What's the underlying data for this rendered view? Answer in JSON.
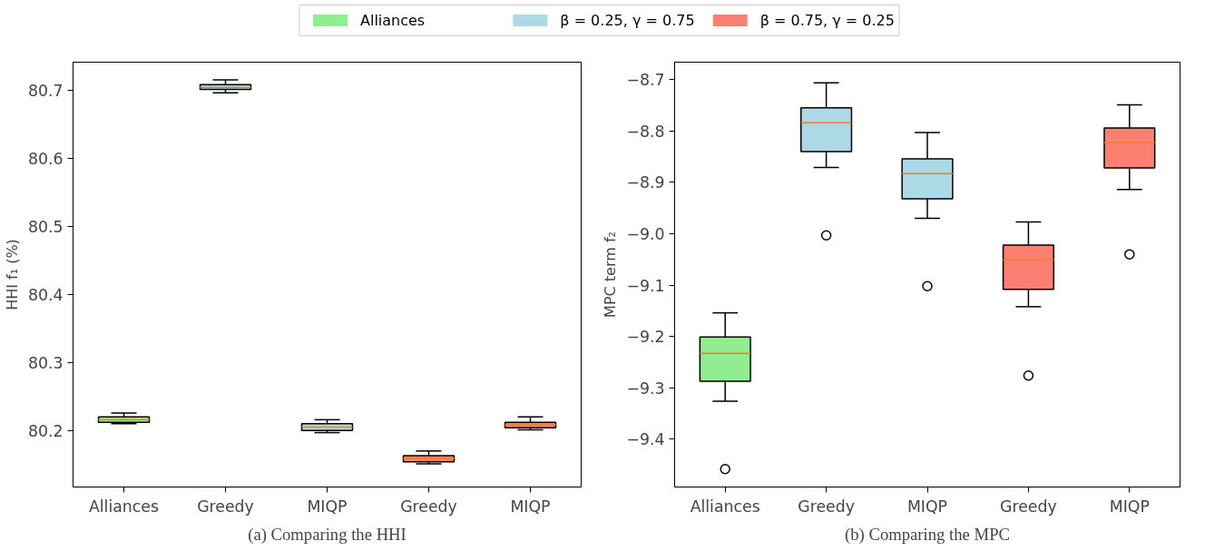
{
  "chart_data": [
    {
      "type": "box",
      "title": "(a) Comparing the HHI",
      "ylabel": "HHI f₁ (%)",
      "categories": [
        "Alliances",
        "Greedy",
        "MIQP",
        "Greedy",
        "MIQP"
      ],
      "ylim": [
        80.117,
        80.742
      ],
      "yticks": [
        80.2,
        80.3,
        80.4,
        80.5,
        80.6,
        80.7
      ],
      "grid": false,
      "legend": "top",
      "series": [
        {
          "name": "Alliances",
          "color": "#90ee90",
          "boxes": [
            {
              "low": 80.21,
              "q1": 80.212,
              "median": 80.216,
              "q3": 80.22,
              "high": 80.226
            },
            null,
            null,
            null,
            null
          ]
        },
        {
          "name": "β = 0.25, γ = 0.75",
          "color": "#add8e6",
          "boxes": [
            null,
            {
              "low": 80.697,
              "q1": 80.702,
              "median": 80.705,
              "q3": 80.709,
              "high": 80.716
            },
            {
              "low": 80.197,
              "q1": 80.2,
              "median": 80.205,
              "q3": 80.21,
              "high": 80.216
            },
            null,
            null
          ]
        },
        {
          "name": "β = 0.75, γ = 0.25",
          "color": "#fa8072",
          "boxes": [
            null,
            null,
            null,
            {
              "low": 80.151,
              "q1": 80.154,
              "median": 80.159,
              "q3": 80.163,
              "high": 80.17
            },
            {
              "low": 80.201,
              "q1": 80.204,
              "median": 80.208,
              "q3": 80.212,
              "high": 80.22
            }
          ]
        }
      ]
    },
    {
      "type": "box",
      "title": "(b) Comparing the MPC",
      "ylabel": "MPC term f₂",
      "categories": [
        "Alliances",
        "Greedy",
        "MIQP",
        "Greedy",
        "MIQP"
      ],
      "ylim": [
        -9.493,
        -8.666
      ],
      "yticks": [
        {
          "value": -9.4,
          "label": "−9.4"
        },
        {
          "value": -9.3,
          "label": "−9.3"
        },
        {
          "value": -9.2,
          "label": "−9.2"
        },
        {
          "value": -9.1,
          "label": "−9.1"
        },
        {
          "value": -9.0,
          "label": "−9.0"
        },
        {
          "value": -8.9,
          "label": "−8.9"
        },
        {
          "value": -8.8,
          "label": "−8.8"
        },
        {
          "value": -8.7,
          "label": "−8.7"
        }
      ],
      "grid": false,
      "series": [
        {
          "color": "#90ee90",
          "boxes": [
            {
              "low": -9.326,
              "q1": -9.287,
              "median": -9.233,
              "q3": -9.201,
              "high": -9.154,
              "outliers": [
                -9.458
              ]
            },
            null,
            null,
            null,
            null
          ]
        },
        {
          "color": "#add8e6",
          "boxes": [
            null,
            {
              "low": -8.871,
              "q1": -8.84,
              "median": -8.784,
              "q3": -8.755,
              "high": -8.706,
              "outliers": [
                -9.003
              ]
            },
            {
              "low": -8.97,
              "q1": -8.932,
              "median": -8.883,
              "q3": -8.854,
              "high": -8.803,
              "outliers": [
                -9.102
              ]
            },
            null,
            null
          ]
        },
        {
          "color": "#fa8072",
          "boxes": [
            null,
            null,
            null,
            {
              "low": -9.142,
              "q1": -9.108,
              "median": -9.05,
              "q3": -9.022,
              "high": -8.977,
              "outliers": [
                -9.276
              ]
            },
            {
              "low": -8.914,
              "q1": -8.872,
              "median": -8.822,
              "q3": -8.794,
              "high": -8.749,
              "outliers": [
                -9.04
              ]
            }
          ]
        }
      ]
    }
  ]
}
